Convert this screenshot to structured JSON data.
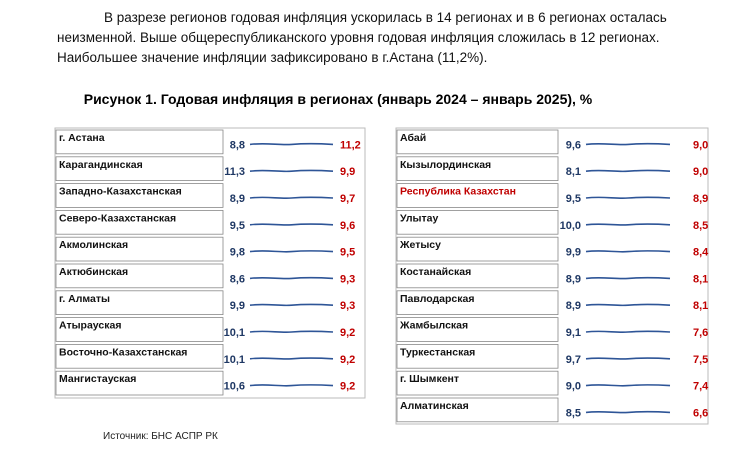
{
  "paragraph": [
    "В разрезе регионов годовая инфляция ускорилась в 14 регионах и в 6 регионах осталась",
    "неизменной. Выше общереспубликанского уровня годовая инфляция сложилась в 12 регионах.",
    "Наибольшее значение инфляции зафиксировано в г.Астана (11,2%)."
  ],
  "caption": "Рисунок 1. Годовая инфляция в регионах (январь 2024 – январь 2025), %",
  "tables": {
    "left": {
      "rows": [
        {
          "name": "г. Астана",
          "start": "8,8",
          "end": "11,2"
        },
        {
          "name": "Карагандинская",
          "start": "11,3",
          "end": "9,9"
        },
        {
          "name": "Западно-Казахстанская",
          "start": "8,9",
          "end": "9,7"
        },
        {
          "name": "Северо-Казахстанская",
          "start": "9,5",
          "end": "9,6"
        },
        {
          "name": "Акмолинская",
          "start": "9,8",
          "end": "9,5"
        },
        {
          "name": "Актюбинская",
          "start": "8,6",
          "end": "9,3"
        },
        {
          "name": "г. Алматы",
          "start": "9,9",
          "end": "9,3"
        },
        {
          "name": "Атырауская",
          "start": "10,1",
          "end": "9,2"
        },
        {
          "name": "Восточно-Казахстанская",
          "start": "10,1",
          "end": "9,2"
        },
        {
          "name": "Мангистауская",
          "start": "10,6",
          "end": "9,2"
        }
      ]
    },
    "right": {
      "rows": [
        {
          "name": "Абай",
          "start": "9,6",
          "end": "9,0"
        },
        {
          "name": "Кызылординская",
          "start": "8,1",
          "end": "9,0"
        },
        {
          "name": "Республика Казахстан",
          "start": "9,5",
          "end": "8,9"
        },
        {
          "name": "Улытау",
          "start": "10,0",
          "end": "8,5"
        },
        {
          "name": "Жетысу",
          "start": "9,9",
          "end": "8,4"
        },
        {
          "name": "Костанайская",
          "start": "8,9",
          "end": "8,1"
        },
        {
          "name": "Павлодарская",
          "start": "8,9",
          "end": "8,1"
        },
        {
          "name": "Жамбылская",
          "start": "9,1",
          "end": "7,6"
        },
        {
          "name": "Туркестанская",
          "start": "9,7",
          "end": "7,5"
        },
        {
          "name": "г. Шымкент",
          "start": "9,0",
          "end": "7,4"
        },
        {
          "name": "Алматинская",
          "start": "8,5",
          "end": "6,6"
        }
      ]
    }
  },
  "source": "Источник: БНС АСПР РК"
}
